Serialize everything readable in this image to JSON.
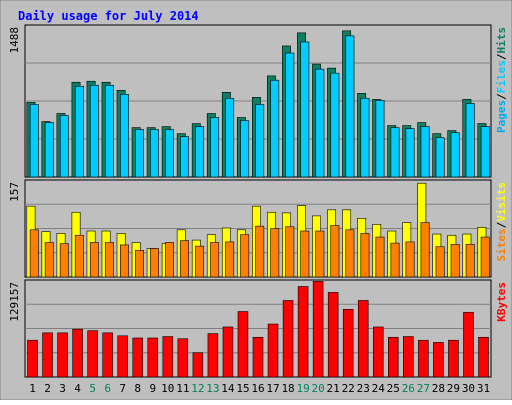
{
  "chart_data": {
    "type": "bar",
    "title": "Daily usage for July 2014",
    "days": [
      "1",
      "2",
      "3",
      "4",
      "5",
      "6",
      "7",
      "8",
      "9",
      "10",
      "11",
      "12",
      "13",
      "14",
      "15",
      "16",
      "17",
      "18",
      "19",
      "20",
      "21",
      "22",
      "23",
      "24",
      "25",
      "26",
      "27",
      "28",
      "29",
      "30",
      "31"
    ],
    "weekend_days": [
      "5",
      "6",
      "12",
      "13",
      "19",
      "20",
      "26",
      "27"
    ],
    "panels": [
      {
        "id": "hits",
        "axis_max_label": "1488",
        "ylim": [
          0,
          1488
        ],
        "legend": [
          "Pages",
          "/",
          "Files",
          "/",
          "Hits"
        ],
        "series": [
          {
            "name": "Hits",
            "values": [
              740,
              550,
              630,
              940,
              950,
              940,
              860,
              490,
              490,
              500,
              430,
              530,
              630,
              840,
              590,
              790,
              1003,
              1300,
              1430,
              1120,
              1080,
              1450,
              830,
              770,
              510,
              510,
              540,
              430,
              460,
              770,
              530
            ]
          },
          {
            "name": "Files",
            "values": [
              720,
              540,
              610,
              900,
              910,
              910,
              820,
              470,
              470,
              470,
              400,
              500,
              590,
              780,
              560,
              720,
              960,
              1230,
              1340,
              1070,
              1030,
              1400,
              780,
              760,
              490,
              480,
              500,
              390,
              440,
              730,
              500
            ]
          }
        ]
      },
      {
        "id": "visits",
        "axis_max_label": "157",
        "ylim": [
          0,
          157
        ],
        "legend": [
          "Sites",
          "/",
          "Visits"
        ],
        "series": [
          {
            "name": "Visits",
            "values": [
              117,
              75,
              72,
              107,
              76,
              76,
              72,
              57,
              47,
              55,
              78,
              61,
              70,
              81,
              78,
              117,
              107,
              106,
              118,
              101,
              111,
              111,
              97,
              87,
              76,
              90,
              155,
              71,
              69,
              71,
              82
            ]
          },
          {
            "name": "Sites",
            "values": [
              78,
              57,
              55,
              69,
              57,
              57,
              53,
              44,
              47,
              57,
              60,
              51,
              57,
              58,
              70,
              84,
              80,
              83,
              76,
              76,
              85,
              78,
              72,
              66,
              56,
              58,
              90,
              50,
              54,
              54,
              66
            ]
          }
        ]
      },
      {
        "id": "kbytes",
        "axis_max_label": "129157",
        "ylim": [
          0,
          129157
        ],
        "legend": [
          "KBytes"
        ],
        "series": [
          {
            "name": "KBytes",
            "values": [
              50000,
              60000,
              60000,
              65000,
              63000,
              60000,
              56000,
              53000,
              53000,
              55000,
              52000,
              33000,
              59000,
              68000,
              89000,
              54000,
              72000,
              104000,
              123000,
              130000,
              115000,
              92000,
              104000,
              68000,
              54000,
              55000,
              50000,
              47000,
              50000,
              88000,
              54000
            ]
          }
        ]
      }
    ]
  },
  "colors": {
    "bg": "#bfbfbf",
    "border": "#000000",
    "title": "#0000ff",
    "hits": "#0d7f64",
    "files": "#00ccff",
    "pages": "#00aaee",
    "visits": "#ffff00",
    "sites": "#ff8000",
    "kbytes": "#ff0000",
    "day_weekday": "#000000",
    "day_weekend": "#00805c"
  }
}
